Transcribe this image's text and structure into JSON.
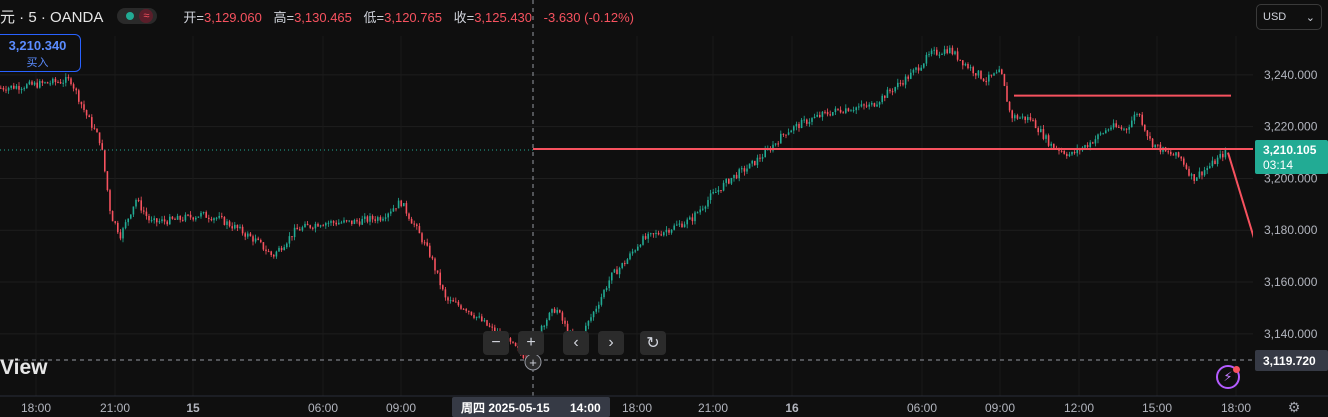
{
  "header": {
    "symbol": "元 · 5 · OANDA",
    "wave_icon": "≈",
    "open_label": "开=",
    "open": "3,129.060",
    "high_label": "高=",
    "high": "3,130.465",
    "low_label": "低=",
    "low": "3,120.765",
    "close_label": "收=",
    "close": "3,125.430",
    "change": "-3.630 (-0.12%)"
  },
  "buy_box": {
    "price": "3,210.340",
    "label": "买入"
  },
  "currency": {
    "label": "USD",
    "chevron": "⌄"
  },
  "logo": "View",
  "controls": [
    "−",
    "+",
    "‹",
    "›",
    "↻"
  ],
  "chart_data": {
    "type": "candlestick",
    "y_ticks": [
      "3,240.000",
      "3,220.000",
      "3,200.000",
      "3,180.000",
      "3,160.000",
      "3,140.000"
    ],
    "y_tick_values": [
      3240,
      3220,
      3200,
      3180,
      3160,
      3140
    ],
    "ylim": [
      3116,
      3255
    ],
    "x_ticks": [
      "18:00",
      "21:00",
      "15",
      "06:00",
      "09:00",
      "18:00",
      "21:00",
      "16",
      "06:00",
      "09:00",
      "12:00",
      "15:00",
      "18:00"
    ],
    "crosshair_label": {
      "date": "周四 2025-05-15",
      "time": "14:00"
    },
    "current_price": {
      "value": "3,210.105",
      "countdown": "03:14"
    },
    "crosshair_price": "3,119.720",
    "price_path": [
      [
        0,
        3235
      ],
      [
        30,
        3236
      ],
      [
        70,
        3238
      ],
      [
        85,
        3225
      ],
      [
        100,
        3214
      ],
      [
        110,
        3186
      ],
      [
        120,
        3178
      ],
      [
        135,
        3192
      ],
      [
        150,
        3183
      ],
      [
        175,
        3184
      ],
      [
        200,
        3186
      ],
      [
        215,
        3185
      ],
      [
        235,
        3181
      ],
      [
        255,
        3176
      ],
      [
        272,
        3170
      ],
      [
        295,
        3180
      ],
      [
        320,
        3183
      ],
      [
        350,
        3183
      ],
      [
        380,
        3185
      ],
      [
        400,
        3191
      ],
      [
        415,
        3181
      ],
      [
        430,
        3170
      ],
      [
        445,
        3153
      ],
      [
        465,
        3150
      ],
      [
        490,
        3142
      ],
      [
        510,
        3136
      ],
      [
        525,
        3131
      ],
      [
        540,
        3143
      ],
      [
        555,
        3150
      ],
      [
        575,
        3135
      ],
      [
        595,
        3150
      ],
      [
        610,
        3162
      ],
      [
        625,
        3168
      ],
      [
        640,
        3176
      ],
      [
        665,
        3180
      ],
      [
        690,
        3184
      ],
      [
        710,
        3193
      ],
      [
        730,
        3200
      ],
      [
        750,
        3205
      ],
      [
        765,
        3210
      ],
      [
        785,
        3218
      ],
      [
        805,
        3222
      ],
      [
        825,
        3225
      ],
      [
        845,
        3227
      ],
      [
        870,
        3228
      ],
      [
        890,
        3234
      ],
      [
        910,
        3240
      ],
      [
        930,
        3248
      ],
      [
        948,
        3250
      ],
      [
        965,
        3244
      ],
      [
        985,
        3238
      ],
      [
        1000,
        3241
      ],
      [
        1010,
        3224
      ],
      [
        1030,
        3223
      ],
      [
        1050,
        3213
      ],
      [
        1070,
        3209
      ],
      [
        1090,
        3214
      ],
      [
        1110,
        3220
      ],
      [
        1125,
        3219
      ],
      [
        1137,
        3226
      ],
      [
        1150,
        3214
      ],
      [
        1165,
        3210
      ],
      [
        1180,
        3208
      ],
      [
        1192,
        3200
      ],
      [
        1210,
        3205
      ],
      [
        1224,
        3210
      ]
    ],
    "hline_resistance": 3232,
    "hline_current": 3211,
    "arrow": {
      "from": [
        1228,
        3210
      ],
      "to": [
        1298,
        3121
      ]
    }
  }
}
